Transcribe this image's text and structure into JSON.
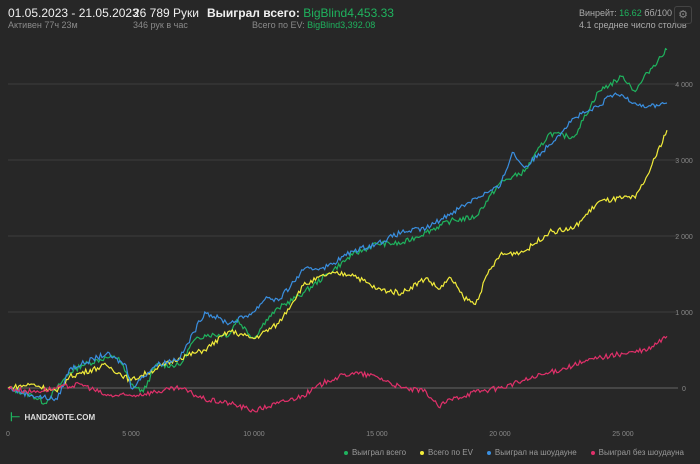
{
  "header": {
    "date_range": "01.05.2023 - 21.05.2023",
    "active": "Активен 77ч 23м",
    "hands": "26 789 Руки",
    "hands_per_hour": "346 рук в час",
    "won_label": "Выиграл всего: ",
    "won_value": "BigBlind4,453.33",
    "ev_label": "Всего по EV: ",
    "ev_value": "BigBlind3,392.08",
    "winrate_label": "Винрейт: ",
    "winrate_value": "16.62",
    "winrate_unit": " бб/100",
    "avg_tables": "4.1 среднее число столов"
  },
  "logo": "HAND2NOTE.COM",
  "chart_data": {
    "type": "line",
    "xlim": [
      0,
      26789
    ],
    "ylim": [
      -350,
      4600
    ],
    "x_ticks": [
      0,
      5000,
      10000,
      15000,
      20000,
      25000
    ],
    "x_tick_labels": [
      "0",
      "5 000",
      "10 000",
      "15 000",
      "20 000",
      "25 000"
    ],
    "y_ticks": [
      0,
      1000,
      2000,
      3000,
      4000
    ],
    "y_tick_labels": [
      "0",
      "1 000",
      "2 000",
      "3 000",
      "4 000"
    ],
    "legend_position": "bottom-right",
    "series": [
      {
        "name": "Выиграл всего",
        "color": "#1fb35e",
        "points": [
          [
            0,
            0
          ],
          [
            1000,
            -100
          ],
          [
            1500,
            -200
          ],
          [
            2500,
            200
          ],
          [
            3000,
            300
          ],
          [
            4000,
            400
          ],
          [
            4500,
            400
          ],
          [
            5000,
            50
          ],
          [
            5500,
            -50
          ],
          [
            6000,
            300
          ],
          [
            7000,
            300
          ],
          [
            7500,
            600
          ],
          [
            8000,
            700
          ],
          [
            9000,
            700
          ],
          [
            9300,
            900
          ],
          [
            10000,
            650
          ],
          [
            10500,
            900
          ],
          [
            11000,
            1050
          ],
          [
            12000,
            1250
          ],
          [
            13000,
            1500
          ],
          [
            14000,
            1750
          ],
          [
            15000,
            1900
          ],
          [
            16000,
            1900
          ],
          [
            17000,
            2050
          ],
          [
            18000,
            2200
          ],
          [
            19000,
            2250
          ],
          [
            20000,
            2700
          ],
          [
            21000,
            2850
          ],
          [
            22000,
            3350
          ],
          [
            23000,
            3300
          ],
          [
            24000,
            3900
          ],
          [
            25000,
            4100
          ],
          [
            25500,
            3900
          ],
          [
            26000,
            4150
          ],
          [
            26789,
            4453
          ]
        ]
      },
      {
        "name": "Всего по EV",
        "color": "#f2ec3a",
        "points": [
          [
            0,
            0
          ],
          [
            1000,
            50
          ],
          [
            2000,
            -50
          ],
          [
            2500,
            150
          ],
          [
            4000,
            300
          ],
          [
            5000,
            100
          ],
          [
            6000,
            250
          ],
          [
            7000,
            400
          ],
          [
            8000,
            500
          ],
          [
            9000,
            750
          ],
          [
            10000,
            650
          ],
          [
            11000,
            850
          ],
          [
            12000,
            1350
          ],
          [
            13000,
            1500
          ],
          [
            14000,
            1500
          ],
          [
            15000,
            1300
          ],
          [
            16000,
            1250
          ],
          [
            17000,
            1450
          ],
          [
            17500,
            1300
          ],
          [
            18000,
            1450
          ],
          [
            18500,
            1200
          ],
          [
            19000,
            1100
          ],
          [
            19500,
            1500
          ],
          [
            20000,
            1750
          ],
          [
            21000,
            1800
          ],
          [
            22000,
            2050
          ],
          [
            23000,
            2100
          ],
          [
            24000,
            2450
          ],
          [
            25000,
            2500
          ],
          [
            25500,
            2500
          ],
          [
            26000,
            2800
          ],
          [
            26789,
            3392
          ]
        ]
      },
      {
        "name": "Выиграл на шоудауне",
        "color": "#3a8fe0",
        "points": [
          [
            0,
            0
          ],
          [
            1000,
            -100
          ],
          [
            2000,
            -150
          ],
          [
            2500,
            250
          ],
          [
            4000,
            450
          ],
          [
            4800,
            300
          ],
          [
            5000,
            0
          ],
          [
            6000,
            300
          ],
          [
            7000,
            400
          ],
          [
            8000,
            1000
          ],
          [
            9000,
            850
          ],
          [
            10000,
            1000
          ],
          [
            10500,
            1200
          ],
          [
            11000,
            1150
          ],
          [
            12000,
            1550
          ],
          [
            13000,
            1600
          ],
          [
            14000,
            1800
          ],
          [
            15000,
            1900
          ],
          [
            16000,
            2050
          ],
          [
            17000,
            2100
          ],
          [
            18000,
            2300
          ],
          [
            19000,
            2500
          ],
          [
            20000,
            2650
          ],
          [
            20500,
            3100
          ],
          [
            21000,
            2900
          ],
          [
            22000,
            3200
          ],
          [
            23000,
            3550
          ],
          [
            24000,
            3700
          ],
          [
            24500,
            3850
          ],
          [
            25000,
            3850
          ],
          [
            25500,
            3750
          ],
          [
            26000,
            3700
          ],
          [
            26789,
            3750
          ]
        ]
      },
      {
        "name": "Выиграл без шоудауна",
        "color": "#e0306a",
        "points": [
          [
            0,
            0
          ],
          [
            1000,
            -50
          ],
          [
            2000,
            0
          ],
          [
            3000,
            50
          ],
          [
            4000,
            -100
          ],
          [
            5000,
            -100
          ],
          [
            6000,
            -50
          ],
          [
            7000,
            0
          ],
          [
            8000,
            -150
          ],
          [
            9000,
            -200
          ],
          [
            10000,
            -300
          ],
          [
            11000,
            -200
          ],
          [
            12000,
            -100
          ],
          [
            13000,
            100
          ],
          [
            14000,
            200
          ],
          [
            15000,
            150
          ],
          [
            16000,
            0
          ],
          [
            17000,
            -50
          ],
          [
            17500,
            -250
          ],
          [
            18000,
            -150
          ],
          [
            19000,
            -50
          ],
          [
            20000,
            0
          ],
          [
            21000,
            100
          ],
          [
            22000,
            200
          ],
          [
            23000,
            300
          ],
          [
            24000,
            400
          ],
          [
            25000,
            450
          ],
          [
            26000,
            500
          ],
          [
            26789,
            680
          ]
        ]
      }
    ]
  }
}
